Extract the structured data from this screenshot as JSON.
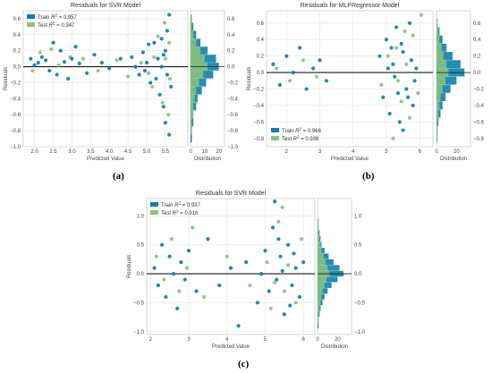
{
  "captions": [
    "(a)",
    "(b)",
    "(c)"
  ],
  "colors": {
    "train": "#0e7fa8",
    "test": "#8cc47a",
    "zero_line": "#1a1a1a",
    "grid": "#e5e5e5",
    "frame": "#bdbdbd"
  },
  "chart_data": [
    {
      "type": "scatter",
      "title": "Residuals for SVR Model",
      "xlabel": "Predicted Value",
      "ylabel": "Residuals",
      "hist_xlabel": "Distribution",
      "xlim": [
        1.7,
        6.1
      ],
      "ylim": [
        -1.0,
        0.7
      ],
      "xticks": [
        2.0,
        2.5,
        3.0,
        3.5,
        4.0,
        4.5,
        5.0,
        5.5
      ],
      "xtick_labels": [
        "2.0",
        "2.5",
        "3.0",
        "3.5",
        "4.0",
        "4.5",
        "5.0",
        "5.5"
      ],
      "yticks": [
        -1.0,
        -0.8,
        -0.6,
        -0.4,
        -0.2,
        0.0,
        0.2,
        0.4,
        0.6
      ],
      "ytick_labels": [
        "−1.0",
        "−0.8",
        "−0.6",
        "−0.4",
        "−0.2",
        "0.0",
        "0.2",
        "0.4",
        "0.6"
      ],
      "hist_xticks": [
        0,
        10,
        20
      ],
      "hist_xtick_labels": [
        "0",
        "10",
        "20"
      ],
      "hist_xlim": [
        0,
        24
      ],
      "legend_position": "top-left",
      "series": [
        {
          "name": "Train R² = 0.957",
          "points": [
            [
              1.9,
              0.1
            ],
            [
              2.0,
              0.02
            ],
            [
              2.1,
              0.05
            ],
            [
              2.2,
              0.12
            ],
            [
              2.3,
              0.08
            ],
            [
              2.4,
              -0.05
            ],
            [
              2.5,
              0.3
            ],
            [
              2.6,
              -0.1
            ],
            [
              2.7,
              0.2
            ],
            [
              2.8,
              0.06
            ],
            [
              2.9,
              -0.15
            ],
            [
              3.0,
              0.1
            ],
            [
              3.1,
              0.25
            ],
            [
              3.2,
              0.04
            ],
            [
              3.4,
              -0.08
            ],
            [
              3.6,
              0.15
            ],
            [
              3.8,
              0.05
            ],
            [
              4.0,
              -0.02
            ],
            [
              4.3,
              0.1
            ],
            [
              4.6,
              0.12
            ],
            [
              4.7,
              0.0
            ],
            [
              4.8,
              -0.1
            ],
            [
              4.9,
              0.18
            ],
            [
              5.0,
              0.05
            ],
            [
              5.1,
              -0.2
            ],
            [
              5.2,
              0.3
            ],
            [
              5.3,
              0.1
            ],
            [
              5.35,
              -0.35
            ],
            [
              5.4,
              0.0
            ],
            [
              5.45,
              -0.5
            ],
            [
              5.5,
              0.2
            ],
            [
              5.5,
              -0.7
            ],
            [
              5.55,
              0.45
            ],
            [
              5.6,
              -0.85
            ],
            [
              5.6,
              0.65
            ],
            [
              5.65,
              -0.25
            ],
            [
              5.4,
              0.35
            ],
            [
              5.25,
              -0.15
            ],
            [
              5.45,
              0.15
            ],
            [
              5.55,
              -0.1
            ],
            [
              5.05,
              0.28
            ],
            [
              4.95,
              -0.05
            ]
          ]
        },
        {
          "name": "Test R² = 0.947",
          "points": [
            [
              1.95,
              -0.05
            ],
            [
              2.15,
              0.18
            ],
            [
              2.45,
              0.22
            ],
            [
              2.65,
              0.02
            ],
            [
              2.95,
              0.12
            ],
            [
              3.3,
              0.1
            ],
            [
              3.7,
              -0.05
            ],
            [
              4.2,
              0.08
            ],
            [
              4.5,
              -0.12
            ],
            [
              4.85,
              0.05
            ],
            [
              5.15,
              -0.25
            ],
            [
              5.3,
              0.38
            ],
            [
              5.42,
              -0.45
            ],
            [
              5.5,
              0.1
            ],
            [
              5.58,
              -0.6
            ],
            [
              5.6,
              0.3
            ],
            [
              5.62,
              -0.15
            ],
            [
              5.48,
              0.55
            ],
            [
              5.2,
              0.12
            ],
            [
              5.05,
              -0.08
            ]
          ]
        }
      ],
      "histogram": {
        "bin_centers": [
          -0.9,
          -0.8,
          -0.7,
          -0.6,
          -0.5,
          -0.4,
          -0.3,
          -0.2,
          -0.1,
          0.0,
          0.1,
          0.2,
          0.3,
          0.4,
          0.5,
          0.6
        ],
        "train_counts": [
          1,
          1,
          2,
          2,
          4,
          5,
          8,
          11,
          16,
          20,
          18,
          12,
          7,
          4,
          2,
          1
        ],
        "test_counts": [
          0,
          1,
          1,
          2,
          2,
          3,
          4,
          6,
          9,
          12,
          10,
          7,
          4,
          2,
          1,
          1
        ]
      }
    },
    {
      "type": "scatter",
      "title": "Residuals for MLPRegressor Model",
      "xlabel": "Predicted Value",
      "ylabel": "Residuals",
      "hist_xlabel": "Distribution",
      "xlim": [
        1.4,
        6.4
      ],
      "ylim": [
        -0.9,
        0.75
      ],
      "xticks": [
        2,
        3,
        4,
        5,
        6
      ],
      "xtick_labels": [
        "2",
        "3",
        "4",
        "5",
        "6"
      ],
      "yticks": [
        -0.8,
        -0.6,
        -0.4,
        -0.2,
        0.0,
        0.2,
        0.4,
        0.6
      ],
      "ytick_labels": [
        "−0.8",
        "−0.6",
        "−0.4",
        "−0.2",
        "0.0",
        "0.2",
        "0.4",
        "0.6"
      ],
      "hist_xticks": [
        0,
        20
      ],
      "hist_xtick_labels": [
        "0",
        "20"
      ],
      "hist_xlim": [
        0,
        34
      ],
      "legend_position": "bottom-left",
      "series": [
        {
          "name": "Train R² = 0.968",
          "points": [
            [
              1.6,
              0.1
            ],
            [
              1.8,
              -0.15
            ],
            [
              2.0,
              0.2
            ],
            [
              2.2,
              0.0
            ],
            [
              2.4,
              0.3
            ],
            [
              2.6,
              -0.2
            ],
            [
              2.8,
              0.05
            ],
            [
              3.0,
              0.15
            ],
            [
              3.2,
              -0.1
            ],
            [
              4.8,
              0.2
            ],
            [
              4.9,
              -0.3
            ],
            [
              5.0,
              0.4
            ],
            [
              5.1,
              -0.5
            ],
            [
              5.2,
              0.1
            ],
            [
              5.3,
              0.55
            ],
            [
              5.4,
              -0.6
            ],
            [
              5.5,
              0.25
            ],
            [
              5.6,
              -0.2
            ],
            [
              5.7,
              0.6
            ],
            [
              5.8,
              -0.4
            ],
            [
              5.9,
              0.05
            ],
            [
              5.5,
              -0.7
            ],
            [
              5.25,
              -0.05
            ],
            [
              5.45,
              0.35
            ],
            [
              5.65,
              -0.3
            ],
            [
              5.75,
              0.15
            ],
            [
              5.05,
              0.05
            ],
            [
              5.35,
              -0.25
            ],
            [
              5.15,
              0.3
            ],
            [
              5.85,
              -0.1
            ]
          ]
        },
        {
          "name": "Test R² = 0.938",
          "points": [
            [
              1.7,
              0.05
            ],
            [
              2.1,
              -0.1
            ],
            [
              2.5,
              0.15
            ],
            [
              2.9,
              -0.05
            ],
            [
              4.85,
              -0.15
            ],
            [
              5.05,
              0.2
            ],
            [
              5.2,
              -0.8
            ],
            [
              5.3,
              0.3
            ],
            [
              5.45,
              -0.35
            ],
            [
              5.6,
              0.1
            ],
            [
              5.7,
              -0.55
            ],
            [
              5.8,
              0.45
            ],
            [
              5.95,
              -0.25
            ],
            [
              6.05,
              0.7
            ],
            [
              5.55,
              0.5
            ],
            [
              5.35,
              -0.1
            ]
          ]
        }
      ],
      "histogram": {
        "bin_centers": [
          -0.8,
          -0.7,
          -0.6,
          -0.5,
          -0.4,
          -0.3,
          -0.2,
          -0.1,
          0.0,
          0.1,
          0.2,
          0.3,
          0.4,
          0.5,
          0.6
        ],
        "train_counts": [
          1,
          1,
          2,
          4,
          6,
          9,
          14,
          20,
          28,
          24,
          16,
          10,
          6,
          3,
          1
        ],
        "test_counts": [
          1,
          1,
          1,
          2,
          3,
          4,
          6,
          9,
          12,
          10,
          7,
          5,
          3,
          2,
          1
        ]
      }
    },
    {
      "type": "scatter",
      "title": "Residuals for SVR Model",
      "xlabel": "Predicted Value",
      "ylabel": "Residuals",
      "hist_xlabel": "Distribution",
      "xlim": [
        1.9,
        6.3
      ],
      "ylim": [
        -1.05,
        1.3
      ],
      "xticks": [
        2,
        3,
        4,
        5,
        6
      ],
      "xtick_labels": [
        "2",
        "3",
        "4",
        "5",
        "6"
      ],
      "yticks": [
        -1.0,
        -0.5,
        0.0,
        0.5,
        1.0
      ],
      "ytick_labels": [
        "−1.0",
        "−0.5",
        "0.0",
        "0.5",
        "1.0"
      ],
      "hist_xticks": [
        0,
        20
      ],
      "hist_xtick_labels": [
        "0",
        "20"
      ],
      "hist_xlim": [
        0,
        34
      ],
      "legend_position": "top-left",
      "series": [
        {
          "name": "Train R² = 0.937",
          "points": [
            [
              2.1,
              0.1
            ],
            [
              2.2,
              -0.2
            ],
            [
              2.3,
              0.5
            ],
            [
              2.4,
              -0.4
            ],
            [
              2.5,
              0.3
            ],
            [
              2.6,
              0.0
            ],
            [
              2.7,
              -0.6
            ],
            [
              2.8,
              0.2
            ],
            [
              2.9,
              -0.1
            ],
            [
              3.0,
              0.4
            ],
            [
              3.2,
              -0.3
            ],
            [
              3.5,
              0.6
            ],
            [
              3.8,
              -0.2
            ],
            [
              4.1,
              0.1
            ],
            [
              4.3,
              -0.9
            ],
            [
              4.5,
              0.2
            ],
            [
              4.8,
              -0.5
            ],
            [
              5.0,
              0.4
            ],
            [
              5.1,
              -0.3
            ],
            [
              5.2,
              0.8
            ],
            [
              5.3,
              -0.1
            ],
            [
              5.4,
              0.3
            ],
            [
              5.5,
              -0.7
            ],
            [
              5.6,
              0.5
            ],
            [
              5.7,
              -0.2
            ],
            [
              5.8,
              0.1
            ],
            [
              5.9,
              -0.4
            ],
            [
              6.0,
              0.2
            ],
            [
              5.25,
              1.25
            ],
            [
              5.45,
              0.05
            ],
            [
              5.65,
              -0.55
            ],
            [
              5.35,
              0.6
            ],
            [
              4.9,
              0.0
            ],
            [
              5.75,
              0.35
            ]
          ]
        },
        {
          "name": "Test R² = 0.916",
          "points": [
            [
              2.15,
              0.3
            ],
            [
              2.35,
              -0.1
            ],
            [
              2.55,
              0.6
            ],
            [
              2.75,
              -0.3
            ],
            [
              2.95,
              0.1
            ],
            [
              3.1,
              0.8
            ],
            [
              3.4,
              -0.4
            ],
            [
              4.0,
              0.3
            ],
            [
              4.6,
              -0.2
            ],
            [
              5.05,
              0.2
            ],
            [
              5.15,
              -0.6
            ],
            [
              5.35,
              0.9
            ],
            [
              5.5,
              -0.3
            ],
            [
              5.6,
              0.15
            ],
            [
              5.8,
              -0.5
            ],
            [
              5.95,
              0.6
            ],
            [
              5.45,
              1.15
            ],
            [
              5.25,
              -0.15
            ]
          ]
        }
      ],
      "histogram": {
        "bin_centers": [
          -0.9,
          -0.8,
          -0.7,
          -0.6,
          -0.5,
          -0.4,
          -0.3,
          -0.2,
          -0.1,
          0.0,
          0.1,
          0.2,
          0.3,
          0.4,
          0.5,
          0.6,
          0.7,
          0.8,
          0.9
        ],
        "train_counts": [
          1,
          1,
          2,
          3,
          5,
          7,
          10,
          14,
          20,
          26,
          22,
          16,
          11,
          7,
          4,
          3,
          2,
          1,
          1
        ],
        "test_counts": [
          0,
          1,
          1,
          2,
          3,
          4,
          5,
          7,
          9,
          12,
          10,
          8,
          6,
          4,
          3,
          2,
          1,
          1,
          1
        ]
      }
    }
  ]
}
